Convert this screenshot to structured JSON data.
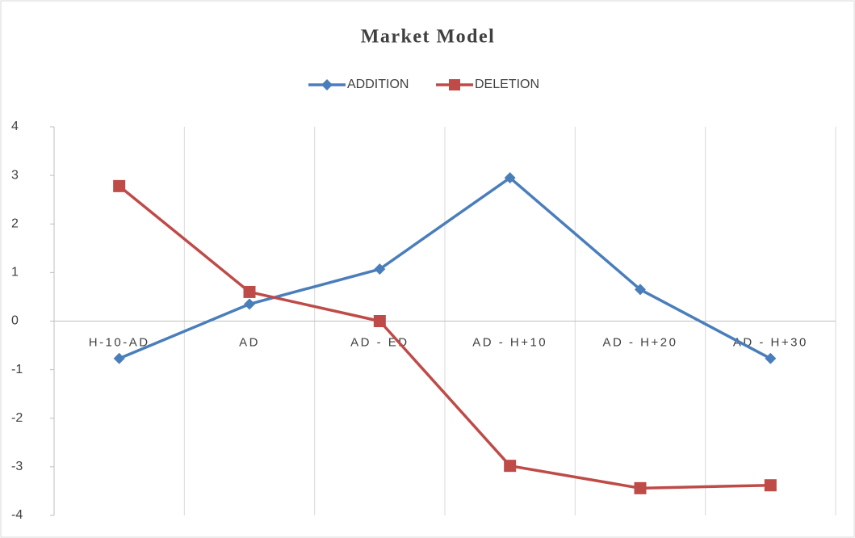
{
  "chart_data": {
    "type": "line",
    "title": "Market Model",
    "categories": [
      "H-10-AD",
      "AD",
      "AD - ED",
      "AD - H+10",
      "AD - H+20",
      "AD - H+30"
    ],
    "series": [
      {
        "name": "ADDITION",
        "color": "#4a7ebb",
        "marker": "diamond",
        "values": [
          -0.77,
          0.35,
          1.07,
          2.95,
          0.65,
          -0.77
        ]
      },
      {
        "name": "DELETION",
        "color": "#be4b48",
        "marker": "square",
        "values": [
          2.78,
          0.6,
          0,
          -2.98,
          -3.44,
          -3.38
        ]
      }
    ],
    "ylim": [
      -4,
      4
    ],
    "yticks": [
      -4,
      -3,
      -2,
      -1,
      0,
      1,
      2,
      3,
      4
    ],
    "legend": "top"
  }
}
